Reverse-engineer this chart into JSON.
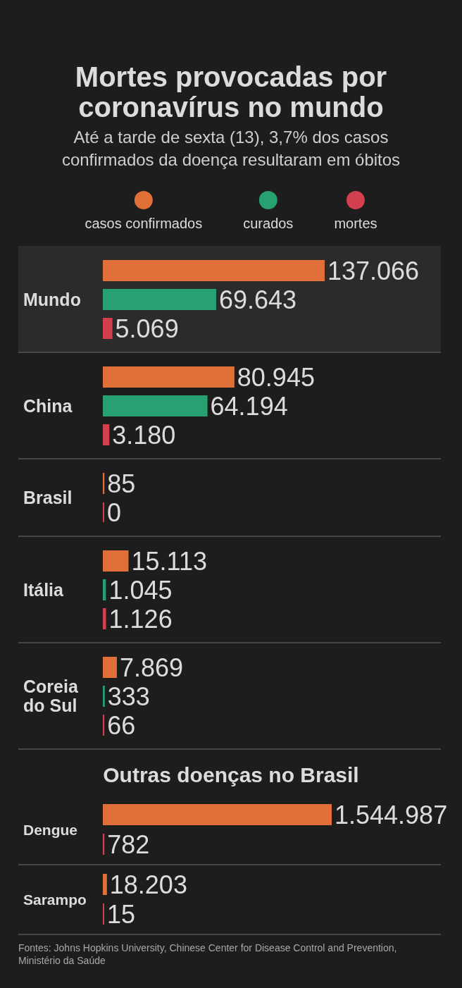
{
  "chart_data": [
    {
      "type": "bar",
      "orientation": "horizontal",
      "title": "Mortes provocadas por coronavírus no mundo",
      "subtitle": "Até a tarde de sexta (13), 3,7% dos casos confirmados da doença resultaram em óbitos",
      "categories": [
        "Mundo",
        "China",
        "Brasil",
        "Itália",
        "Coreia do Sul"
      ],
      "series": [
        {
          "name": "casos confirmados",
          "color": "#e07038",
          "values": [
            137066,
            80945,
            85,
            15113,
            7869
          ],
          "value_labels": [
            "137.066",
            "80.945",
            "85",
            "15.113",
            "7.869"
          ]
        },
        {
          "name": "curados",
          "color": "#27a072",
          "values": [
            69643,
            64194,
            null,
            1045,
            333
          ],
          "value_labels": [
            "69.643",
            "64.194",
            null,
            "1.045",
            "333"
          ]
        },
        {
          "name": "mortes",
          "color": "#d23f4e",
          "values": [
            5069,
            3180,
            0,
            1126,
            66
          ],
          "value_labels": [
            "5.069",
            "3.180",
            "0",
            "1.126",
            "66"
          ]
        }
      ],
      "legend": "top",
      "tick_labels": "y",
      "bands": [
        {
          "axis": "y",
          "from": "Mundo",
          "to": "Mundo",
          "color": "#2b2b2b"
        }
      ]
    },
    {
      "type": "bar",
      "orientation": "horizontal",
      "title": "Outras doenças no Brasil",
      "categories": [
        "Dengue",
        "Sarampo"
      ],
      "series": [
        {
          "color": "#e07038",
          "values": [
            1544987,
            18203
          ],
          "value_labels": [
            "1.544.987",
            "18.203"
          ]
        },
        {
          "color": "#d23f4e",
          "values": [
            782,
            15
          ],
          "value_labels": [
            "782",
            "15"
          ]
        }
      ],
      "tick_labels": "y",
      "annotations": [
        "Fontes: Johns Hopkins University, Chinese Center for Disease Control and Prevention, Ministério da Saúde"
      ]
    }
  ]
}
